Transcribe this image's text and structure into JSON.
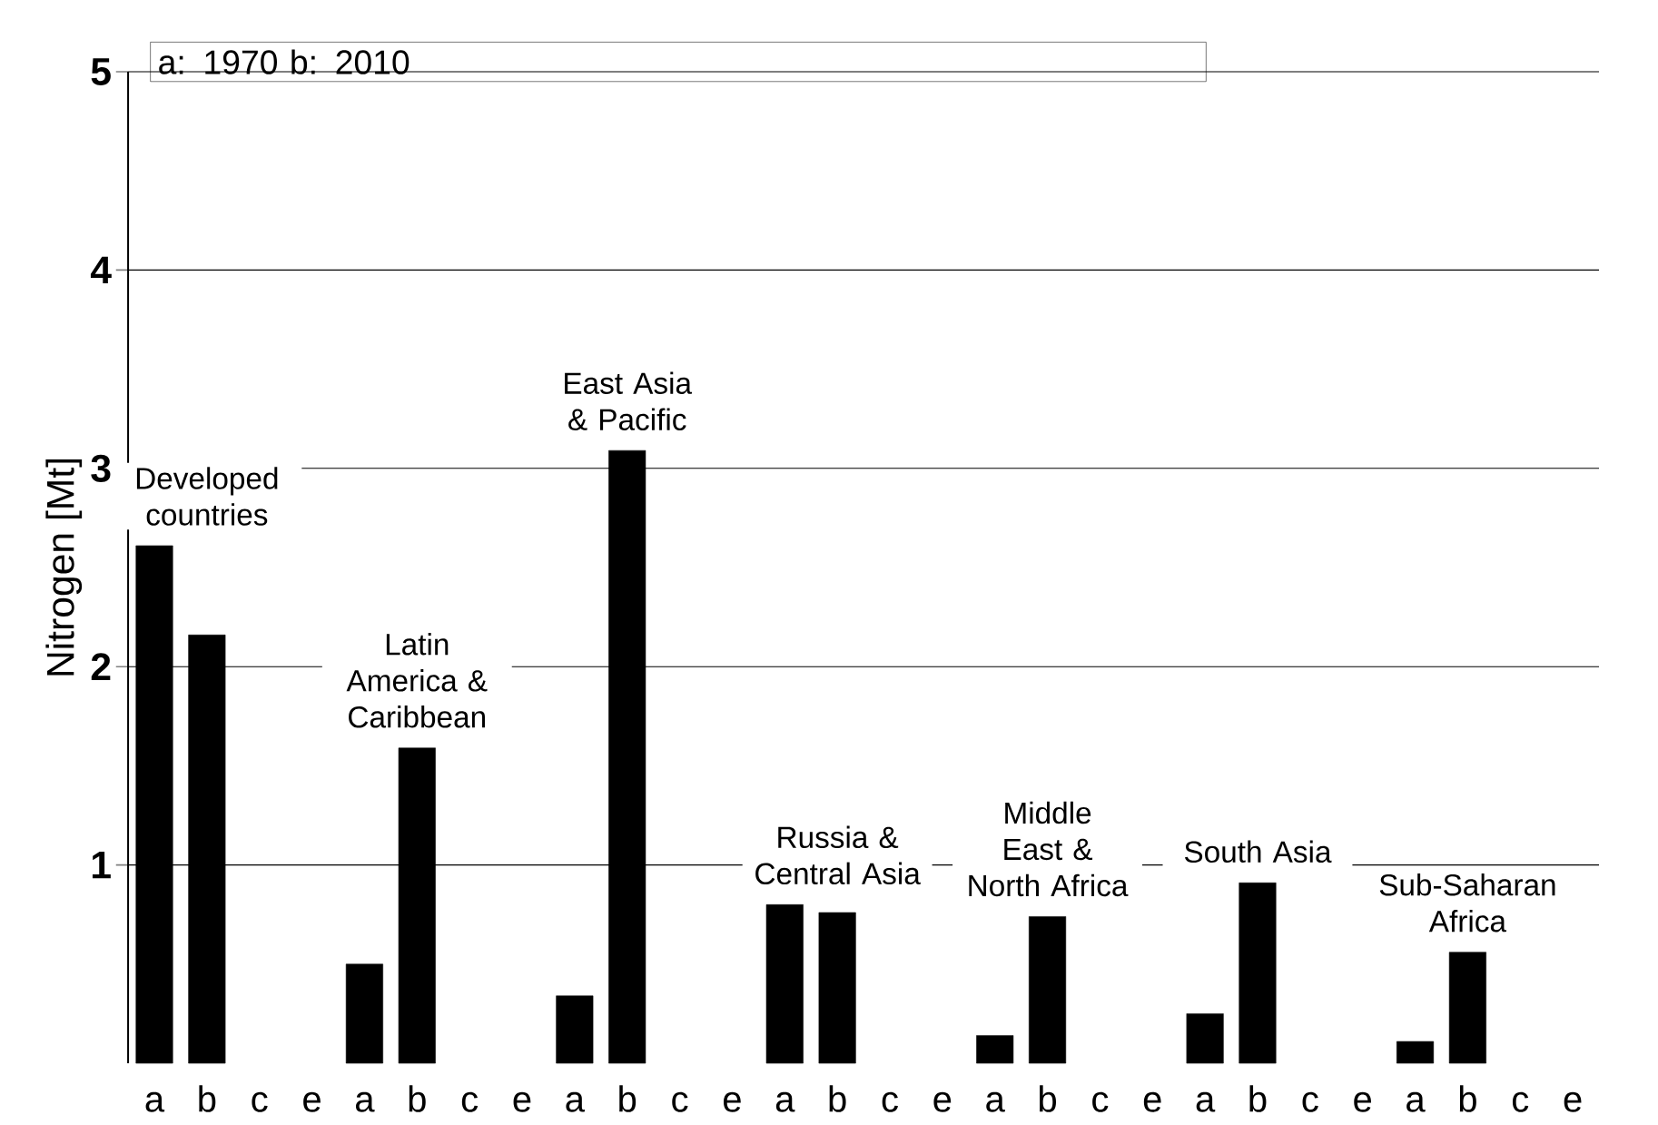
{
  "chart_data": {
    "type": "bar",
    "ylabel": "Nitrogen [Mt]",
    "legend_title": "a: 1970 b: 2010",
    "categories": [
      "a",
      "b",
      "c",
      "e",
      "a",
      "b",
      "c",
      "e",
      "a",
      "b",
      "c",
      "e",
      "a",
      "b",
      "c",
      "e",
      "a",
      "b",
      "c",
      "e",
      "a",
      "b",
      "c",
      "e",
      "a",
      "b",
      "c",
      "e"
    ],
    "values": [
      2.61,
      2.16,
      null,
      null,
      0.5,
      1.59,
      null,
      null,
      0.34,
      3.09,
      null,
      null,
      0.8,
      0.76,
      null,
      null,
      0.14,
      0.74,
      null,
      null,
      0.25,
      0.91,
      null,
      null,
      0.11,
      0.56,
      null,
      null
    ],
    "color": "#000000",
    "ylim": [
      0,
      5
    ],
    "yticks": [
      1,
      2,
      3,
      4,
      5
    ],
    "grid": "y",
    "annotations": [
      "Developed countries",
      "Latin America & Caribbean",
      "East Asia & Pacific",
      "Russia & Central Asia",
      "Middle East & North Africa",
      "South Asia",
      "Sub-Saharan Africa"
    ]
  }
}
